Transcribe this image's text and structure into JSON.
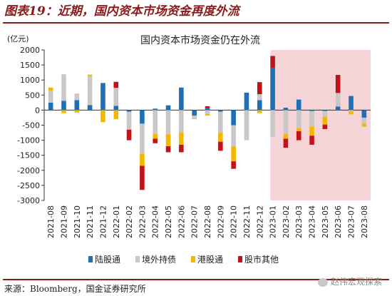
{
  "figure_title": "图表19：近期，国内资本市场资金再度外流",
  "source": "来源：Bloomberg，国金证券研究所",
  "watermark": "赵伟宏观探索",
  "chart_data": {
    "type": "bar",
    "stacked": true,
    "title": "国内资本市场资金仍在外流",
    "unit_label": "(亿元)",
    "xlabel": "",
    "ylabel": "",
    "ylim": [
      -3000,
      2000
    ],
    "yticks": [
      -3000,
      -2500,
      -2000,
      -1500,
      -1000,
      -500,
      0,
      500,
      1000,
      1500,
      2000
    ],
    "grid": false,
    "legend_position": "bottom",
    "highlight_range": [
      "2023-01",
      "2023-08"
    ],
    "highlight_color": "#f4d4d6",
    "categories": [
      "2021-08",
      "2021-09",
      "2021-10",
      "2021-11",
      "2021-12",
      "2022-01",
      "2022-02",
      "2022-03",
      "2022-04",
      "2022-05",
      "2022-06",
      "2022-07",
      "2022-08",
      "2022-09",
      "2022-10",
      "2022-11",
      "2022-12",
      "2023-01",
      "2023-02",
      "2023-03",
      "2023-04",
      "2023-05",
      "2023-06",
      "2023-07",
      "2023-08"
    ],
    "series": [
      {
        "name": "陆股通",
        "color": "#1f6fb4",
        "values": [
          250,
          310,
          330,
          170,
          900,
          140,
          -50,
          -450,
          50,
          160,
          750,
          -180,
          80,
          -50,
          -500,
          580,
          330,
          1400,
          80,
          350,
          -30,
          -30,
          120,
          470,
          -250
        ]
      },
      {
        "name": "境外持债",
        "color": "#c8c8c8",
        "values": [
          400,
          880,
          220,
          960,
          0,
          600,
          -600,
          -1000,
          -800,
          -800,
          -750,
          -120,
          -130,
          -700,
          -700,
          -1000,
          200,
          -900,
          -800,
          -600,
          -520,
          -200,
          450,
          -40,
          -200
        ]
      },
      {
        "name": "港股通",
        "color": "#f5b800",
        "values": [
          100,
          -100,
          -80,
          50,
          -400,
          -300,
          0,
          -400,
          -150,
          -400,
          -400,
          0,
          -50,
          -300,
          -500,
          0,
          -100,
          0,
          -150,
          -100,
          -300,
          -250,
          0,
          -100,
          -100
        ]
      },
      {
        "name": "股市其他",
        "color": "#c0141c",
        "values": [
          0,
          0,
          0,
          0,
          0,
          200,
          -350,
          -800,
          -150,
          -200,
          -250,
          0,
          50,
          -300,
          -250,
          0,
          400,
          400,
          -300,
          -300,
          -300,
          -150,
          600,
          0,
          0
        ]
      }
    ]
  }
}
